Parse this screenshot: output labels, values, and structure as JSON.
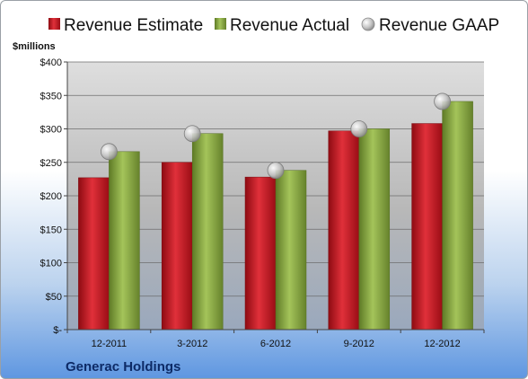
{
  "colors": {
    "estimate": "#c8141e",
    "actual": "#86a640",
    "gaap": "#b9b9b9"
  },
  "chart_data": {
    "type": "bar",
    "categories": [
      "12-2011",
      "3-2012",
      "6-2012",
      "9-2012",
      "12-2012"
    ],
    "series": [
      {
        "name": "Revenue Estimate",
        "kind": "bar",
        "values": [
          227,
          250,
          228,
          297,
          308
        ]
      },
      {
        "name": "Revenue Actual",
        "kind": "bar",
        "values": [
          266,
          293,
          238,
          300,
          341
        ]
      },
      {
        "name": "Revenue GAAP",
        "kind": "marker",
        "values": [
          266,
          293,
          238,
          300,
          341
        ]
      }
    ],
    "ylabel": "$millions",
    "ylim": [
      0,
      400
    ],
    "yticks": [
      0,
      50,
      100,
      150,
      200,
      250,
      300,
      350,
      400
    ],
    "ytick_labels": [
      "$-",
      "$50",
      "$100",
      "$150",
      "$200",
      "$250",
      "$300",
      "$350",
      "$400"
    ],
    "grid": true,
    "legend": "top",
    "company": "Generac Holdings"
  }
}
